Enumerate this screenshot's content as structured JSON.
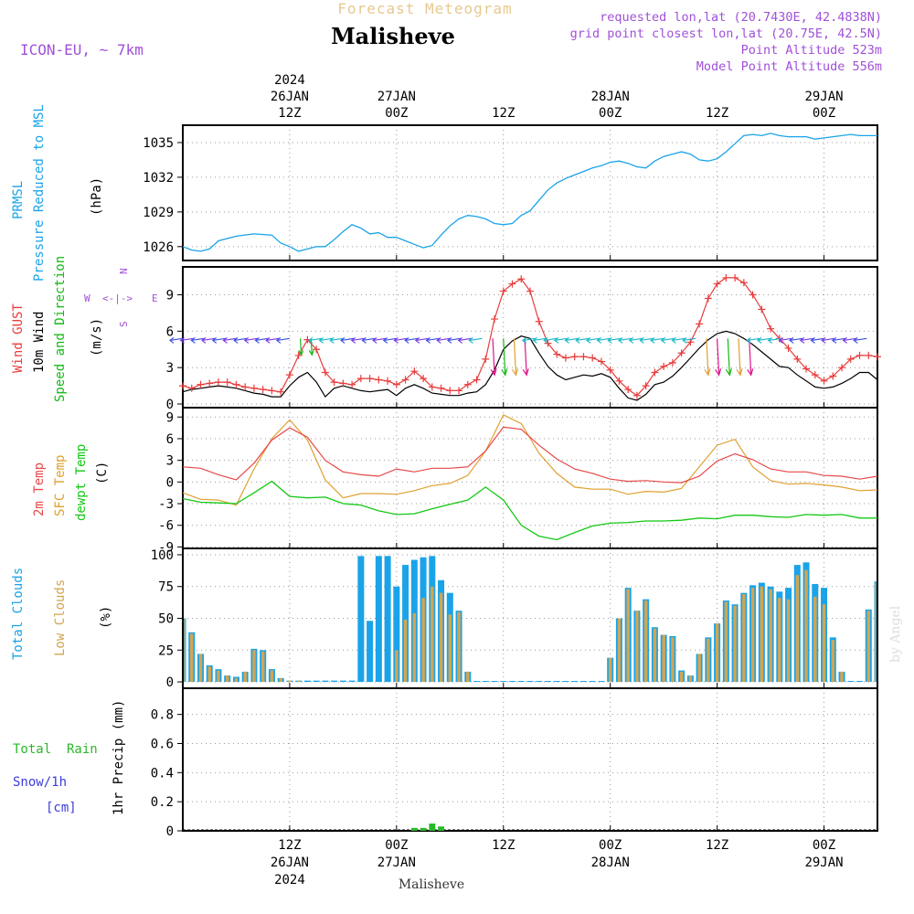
{
  "header": {
    "product": "Forecast Meteogram",
    "location": "Malisheve",
    "model": "ICON-EU, ~ 7km",
    "requested": "requested lon,lat (20.7430E, 42.4838N)",
    "gridpoint": "grid point closest lon,lat (20.75E, 42.5N)",
    "point_altitude": "Point Altitude 523m",
    "model_altitude": "Model Point Altitude 556m",
    "credit": "by Angel",
    "footer_location": "Malisheve"
  },
  "time_axis": {
    "start_hour": 0,
    "end_hour": 78,
    "ticks": [
      {
        "hour": 12,
        "label": "12Z",
        "date": "26JAN",
        "year": "2024"
      },
      {
        "hour": 24,
        "label": "00Z",
        "date": "27JAN",
        "year": ""
      },
      {
        "hour": 36,
        "label": "12Z",
        "date": "",
        "year": ""
      },
      {
        "hour": 48,
        "label": "00Z",
        "date": "28JAN",
        "year": ""
      },
      {
        "hour": 60,
        "label": "12Z",
        "date": "",
        "year": ""
      },
      {
        "hour": 72,
        "label": "00Z",
        "date": "29JAN",
        "year": ""
      }
    ]
  },
  "colors": {
    "pressure": "#1aa3e8",
    "gust": "#e83c3c",
    "wind": "#000000",
    "direction": "#14b814",
    "temp": "#e84848",
    "sfc": "#e0a030",
    "dewpt": "#14c814",
    "total_clouds": "#1aa3e8",
    "low_clouds": "#d2a552",
    "rain": "#2ab82a",
    "snow": "#3c3cdc",
    "header_purple": "#a050d8",
    "header_tan": "#e8c890"
  },
  "chart_data": [
    {
      "type": "line",
      "panel": "pressure",
      "label_lines": [
        "PRMSL",
        "Pressure Reduced to MSL"
      ],
      "ylabel": "(hPa)",
      "ylim": [
        1024.8,
        1036.5
      ],
      "yticks": [
        1026,
        1029,
        1032,
        1035
      ],
      "series": [
        {
          "name": "PRMSL",
          "x": [
            0,
            1,
            2,
            3,
            4,
            6,
            8,
            10,
            11,
            12,
            13,
            14,
            15,
            16,
            17,
            18,
            19,
            20,
            21,
            22,
            23,
            24,
            25,
            26,
            27,
            28,
            29,
            30,
            31,
            32,
            33,
            34,
            35,
            36,
            37,
            38,
            39,
            40,
            41,
            42,
            43,
            44,
            45,
            46,
            47,
            48,
            49,
            50,
            51,
            52,
            53,
            54,
            55,
            56,
            57,
            58,
            59,
            60,
            61,
            62,
            63,
            64,
            65,
            66,
            67,
            68,
            69,
            70,
            71,
            72,
            73,
            74,
            75,
            76,
            77,
            78
          ],
          "values": [
            1026.0,
            1025.7,
            1025.6,
            1025.8,
            1026.5,
            1026.9,
            1027.1,
            1027.0,
            1026.3,
            1026.0,
            1025.6,
            1025.8,
            1026.0,
            1026.0,
            1026.6,
            1027.3,
            1027.9,
            1027.6,
            1027.1,
            1027.2,
            1026.8,
            1026.8,
            1026.5,
            1026.2,
            1025.9,
            1026.1,
            1027.0,
            1027.8,
            1028.4,
            1028.7,
            1028.6,
            1028.4,
            1028.0,
            1027.9,
            1028.0,
            1028.7,
            1029.1,
            1030.0,
            1030.9,
            1031.5,
            1031.9,
            1032.2,
            1032.5,
            1032.8,
            1033.0,
            1033.3,
            1033.4,
            1033.2,
            1032.9,
            1032.8,
            1033.4,
            1033.8,
            1034.0,
            1034.2,
            1034.0,
            1033.5,
            1033.4,
            1033.6,
            1034.2,
            1034.9,
            1035.6,
            1035.7,
            1035.6,
            1035.8,
            1035.6,
            1035.5,
            1035.5,
            1035.5,
            1035.3,
            1035.4,
            1035.5,
            1035.6,
            1035.7,
            1035.6,
            1035.6,
            1035.6
          ]
        }
      ]
    },
    {
      "type": "line",
      "panel": "wind",
      "label_lines": [
        "Wind GUST",
        "10m Wind",
        "Speed and Direction"
      ],
      "ylabel": "(m/s)",
      "compass": {
        "n": "N",
        "s": "S",
        "w": "W",
        "e": "E",
        "arrow": "<-|->"
      },
      "ylim": [
        -0.3,
        11.3
      ],
      "yticks": [
        0,
        3,
        6,
        9
      ],
      "series": [
        {
          "name": "Wind GUST",
          "x": [
            0,
            1,
            2,
            3,
            4,
            5,
            6,
            7,
            8,
            9,
            10,
            11,
            12,
            13,
            14,
            15,
            16,
            17,
            18,
            19,
            20,
            21,
            22,
            23,
            24,
            25,
            26,
            27,
            28,
            29,
            30,
            31,
            32,
            33,
            34,
            35,
            36,
            37,
            38,
            39,
            40,
            41,
            42,
            43,
            44,
            45,
            46,
            47,
            48,
            49,
            50,
            51,
            52,
            53,
            54,
            55,
            56,
            57,
            58,
            59,
            60,
            61,
            62,
            63,
            64,
            65,
            66,
            67,
            68,
            69,
            70,
            71,
            72,
            73,
            74,
            75,
            76,
            77,
            78
          ],
          "values": [
            1.5,
            1.3,
            1.6,
            1.7,
            1.8,
            1.8,
            1.6,
            1.4,
            1.3,
            1.2,
            1.1,
            1.0,
            2.4,
            4.0,
            5.3,
            4.5,
            2.6,
            1.8,
            1.7,
            1.6,
            2.1,
            2.1,
            2.0,
            1.9,
            1.6,
            2.0,
            2.7,
            2.1,
            1.4,
            1.3,
            1.1,
            1.1,
            1.6,
            2.0,
            3.7,
            7.0,
            9.3,
            9.9,
            10.3,
            9.3,
            6.8,
            5.0,
            4.1,
            3.8,
            3.9,
            3.9,
            3.8,
            3.5,
            2.8,
            1.9,
            1.2,
            0.7,
            1.5,
            2.6,
            3.1,
            3.4,
            4.2,
            5.1,
            6.6,
            8.7,
            9.9,
            10.4,
            10.4,
            10.0,
            9.0,
            7.8,
            6.2,
            5.4,
            4.6,
            3.7,
            2.9,
            2.4,
            1.9,
            2.3,
            3.0,
            3.7,
            4.0,
            4.0,
            3.9
          ]
        },
        {
          "name": "10m Wind",
          "x": [
            0,
            1,
            2,
            3,
            4,
            5,
            6,
            7,
            8,
            9,
            10,
            11,
            12,
            13,
            14,
            15,
            16,
            17,
            18,
            19,
            20,
            21,
            22,
            23,
            24,
            25,
            26,
            27,
            28,
            29,
            30,
            31,
            32,
            33,
            34,
            35,
            36,
            37,
            38,
            39,
            40,
            41,
            42,
            43,
            44,
            45,
            46,
            47,
            48,
            49,
            50,
            51,
            52,
            53,
            54,
            55,
            56,
            57,
            58,
            59,
            60,
            61,
            62,
            63,
            64,
            65,
            66,
            67,
            68,
            69,
            70,
            71,
            72,
            73,
            74,
            75,
            76,
            77,
            78
          ],
          "values": [
            1.0,
            1.2,
            1.3,
            1.4,
            1.5,
            1.4,
            1.3,
            1.1,
            0.9,
            0.8,
            0.6,
            0.6,
            1.5,
            2.2,
            2.6,
            1.8,
            0.6,
            1.3,
            1.5,
            1.3,
            1.1,
            1.0,
            1.1,
            1.2,
            0.7,
            1.3,
            1.6,
            1.3,
            0.9,
            0.8,
            0.7,
            0.7,
            0.9,
            1.0,
            1.6,
            2.8,
            4.5,
            5.2,
            5.6,
            5.4,
            4.2,
            3.1,
            2.4,
            2.0,
            2.2,
            2.4,
            2.3,
            2.5,
            2.2,
            1.3,
            0.5,
            0.3,
            0.8,
            1.6,
            1.8,
            2.3,
            3.0,
            3.8,
            4.6,
            5.3,
            5.8,
            6.0,
            5.8,
            5.4,
            4.9,
            4.3,
            3.7,
            3.1,
            3.0,
            2.4,
            1.9,
            1.4,
            1.3,
            1.4,
            1.7,
            2.1,
            2.6,
            2.6,
            2.0
          ]
        }
      ]
    },
    {
      "type": "line",
      "panel": "temperature",
      "label_lines": [
        "2m Temp",
        "SFC Temp",
        "dewpt Temp"
      ],
      "ylabel": "(C)",
      "ylim": [
        -9.2,
        10.3
      ],
      "yticks": [
        -9,
        -6,
        -3,
        0,
        3,
        6,
        9
      ],
      "series": [
        {
          "name": "2m Temp",
          "x": [
            0,
            2,
            4,
            6,
            8,
            10,
            12,
            14,
            16,
            18,
            20,
            22,
            24,
            26,
            28,
            30,
            32,
            34,
            36,
            38,
            40,
            42,
            44,
            46,
            48,
            50,
            52,
            54,
            56,
            58,
            60,
            62,
            64,
            66,
            68,
            70,
            72,
            74,
            76,
            78
          ],
          "values": [
            2.1,
            1.9,
            1.0,
            0.3,
            2.6,
            5.8,
            7.5,
            6.2,
            3.0,
            1.4,
            1.0,
            0.8,
            1.8,
            1.4,
            1.9,
            1.9,
            2.1,
            4.3,
            7.6,
            7.3,
            5.1,
            3.2,
            1.8,
            1.2,
            0.4,
            0.1,
            0.2,
            0.0,
            -0.1,
            0.8,
            2.9,
            3.9,
            3.1,
            1.8,
            1.4,
            1.4,
            0.9,
            0.8,
            0.4,
            0.8
          ]
        },
        {
          "name": "SFC Temp",
          "x": [
            0,
            2,
            4,
            6,
            8,
            10,
            12,
            14,
            16,
            18,
            20,
            22,
            24,
            26,
            28,
            30,
            32,
            34,
            36,
            38,
            40,
            42,
            44,
            46,
            48,
            50,
            52,
            54,
            56,
            58,
            60,
            62,
            64,
            66,
            68,
            70,
            72,
            74,
            76,
            78
          ],
          "values": [
            -1.5,
            -2.4,
            -2.5,
            -3.2,
            1.8,
            6.0,
            8.6,
            5.8,
            0.3,
            -2.2,
            -1.6,
            -1.6,
            -1.7,
            -1.2,
            -0.5,
            -0.2,
            0.9,
            4.3,
            9.3,
            8.1,
            4.0,
            1.2,
            -0.7,
            -1.0,
            -1.0,
            -1.7,
            -1.3,
            -1.4,
            -0.9,
            2.1,
            5.1,
            5.9,
            2.1,
            0.2,
            -0.3,
            -0.2,
            -0.4,
            -0.7,
            -1.2,
            -1.1
          ]
        },
        {
          "name": "dewpt Temp",
          "x": [
            0,
            2,
            4,
            6,
            8,
            10,
            12,
            14,
            16,
            18,
            20,
            22,
            24,
            26,
            28,
            30,
            32,
            34,
            36,
            38,
            40,
            42,
            44,
            46,
            48,
            50,
            52,
            54,
            56,
            58,
            60,
            62,
            64,
            66,
            68,
            70,
            72,
            74,
            76,
            78
          ],
          "values": [
            -2.3,
            -2.8,
            -2.9,
            -3.0,
            -1.5,
            0.1,
            -2.0,
            -2.2,
            -2.1,
            -3.0,
            -3.2,
            -4.0,
            -4.5,
            -4.4,
            -3.7,
            -3.1,
            -2.5,
            -0.7,
            -2.5,
            -6.0,
            -7.5,
            -8.0,
            -7.0,
            -6.1,
            -5.7,
            -5.6,
            -5.4,
            -5.4,
            -5.3,
            -5.0,
            -5.1,
            -4.6,
            -4.6,
            -4.8,
            -4.9,
            -4.5,
            -4.6,
            -4.5,
            -5.0,
            -5.0
          ]
        }
      ]
    },
    {
      "type": "bar",
      "panel": "clouds",
      "label_lines": [
        "Total Clouds",
        "Low Clouds"
      ],
      "ylabel": "(%)",
      "ylim": [
        -5,
        105
      ],
      "yticks": [
        0,
        25,
        50,
        75,
        100
      ],
      "x": [
        0,
        1,
        2,
        3,
        4,
        5,
        6,
        7,
        8,
        9,
        10,
        11,
        12,
        13,
        14,
        15,
        16,
        17,
        18,
        19,
        20,
        21,
        22,
        23,
        24,
        25,
        26,
        27,
        28,
        29,
        30,
        31,
        32,
        33,
        34,
        35,
        36,
        37,
        38,
        39,
        40,
        41,
        42,
        43,
        44,
        45,
        46,
        47,
        48,
        49,
        50,
        51,
        52,
        53,
        54,
        55,
        56,
        57,
        58,
        59,
        60,
        61,
        62,
        63,
        64,
        65,
        66,
        67,
        68,
        69,
        70,
        71,
        72,
        73,
        74,
        75,
        76,
        77,
        78
      ],
      "series": [
        {
          "name": "Total Clouds",
          "values": [
            50,
            39,
            22,
            13,
            10,
            5,
            4,
            8,
            26,
            25,
            10,
            3,
            1,
            1,
            1,
            1,
            1,
            1,
            1,
            1,
            99,
            48,
            99,
            99,
            75,
            92,
            96,
            98,
            99,
            80,
            70,
            56,
            8,
            0,
            0,
            0,
            0,
            0,
            0,
            0,
            0,
            0,
            0,
            0,
            0,
            0,
            0,
            0,
            19,
            50,
            74,
            56,
            65,
            43,
            37,
            36,
            9,
            5,
            22,
            35,
            46,
            64,
            61,
            70,
            76,
            78,
            75,
            71,
            74,
            92,
            94,
            77,
            74,
            35,
            8,
            0,
            0,
            57,
            79
          ]
        },
        {
          "name": "Low Clouds",
          "values": [
            50,
            38,
            22,
            12,
            9,
            5,
            3,
            8,
            25,
            24,
            9,
            3,
            1,
            1,
            0,
            0,
            0,
            0,
            0,
            0,
            0,
            0,
            0,
            0,
            25,
            49,
            54,
            66,
            75,
            70,
            53,
            55,
            8,
            0,
            0,
            0,
            0,
            0,
            0,
            0,
            0,
            0,
            0,
            0,
            0,
            0,
            0,
            0,
            19,
            50,
            73,
            56,
            64,
            42,
            37,
            35,
            8,
            5,
            22,
            34,
            46,
            63,
            60,
            69,
            74,
            75,
            73,
            66,
            65,
            84,
            88,
            67,
            61,
            33,
            8,
            0,
            0,
            56,
            78
          ]
        }
      ]
    },
    {
      "type": "bar",
      "panel": "precipitation",
      "label_lines": [
        "Total  Rain",
        "Snow/1h",
        "[cm]"
      ],
      "ylabel": "1hr Precip (mm)",
      "ylim": [
        0,
        0.98
      ],
      "yticks": [
        0,
        0.2,
        0.4,
        0.6,
        0.8
      ],
      "x": [
        26,
        27,
        28,
        29
      ],
      "series": [
        {
          "name": "Total Rain",
          "values": [
            0.02,
            0.02,
            0.05,
            0.03
          ]
        }
      ]
    }
  ]
}
